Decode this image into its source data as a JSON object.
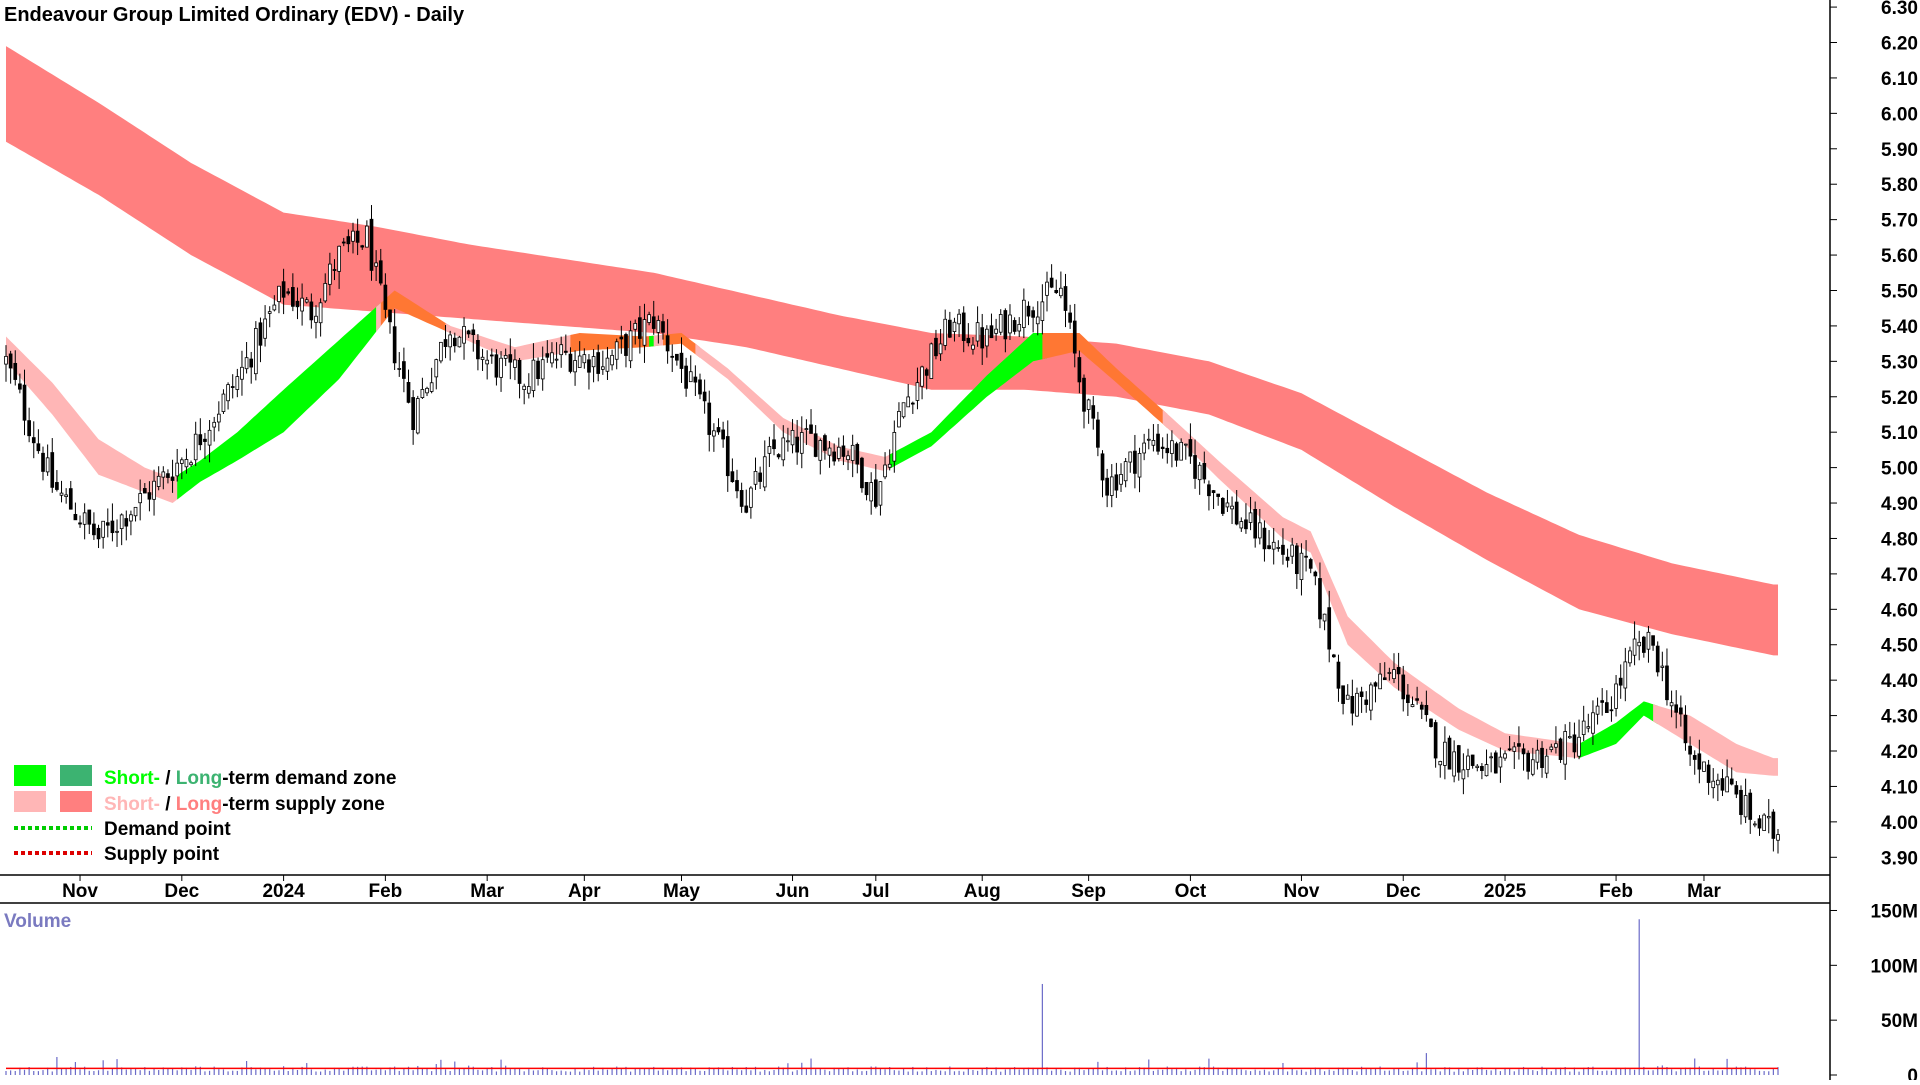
{
  "chart_data": {
    "type": "candlestick",
    "title": "Endeavour Group Limited Ordinary (EDV) - Daily",
    "y_axis": {
      "range": [
        3.85,
        6.32
      ],
      "ticks": [
        "3.90",
        "4.00",
        "4.10",
        "4.20",
        "4.30",
        "4.40",
        "4.50",
        "4.60",
        "4.70",
        "4.80",
        "4.90",
        "5.00",
        "5.10",
        "5.20",
        "5.30",
        "5.40",
        "5.50",
        "5.60",
        "5.70",
        "5.80",
        "5.90",
        "6.00",
        "6.10",
        "6.20",
        "6.30"
      ]
    },
    "x_axis": {
      "months": [
        "Nov",
        "Dec",
        "2024",
        "Feb",
        "Mar",
        "Apr",
        "May",
        "Jun",
        "Jul",
        "Aug",
        "Sep",
        "Oct",
        "Nov",
        "Dec",
        "2025",
        "Feb",
        "Mar"
      ],
      "month_day_index": [
        16,
        38,
        60,
        82,
        104,
        125,
        146,
        170,
        188,
        211,
        234,
        256,
        280,
        302,
        324,
        348,
        367
      ]
    },
    "price_path": {
      "day_index": [
        0,
        10,
        20,
        30,
        40,
        50,
        60,
        66,
        72,
        78,
        82,
        88,
        96,
        104,
        112,
        120,
        130,
        140,
        146,
        152,
        160,
        166,
        174,
        182,
        188,
        194,
        204,
        212,
        220,
        228,
        232,
        238,
        248,
        256,
        266,
        276,
        282,
        290,
        300,
        310,
        320,
        330,
        338,
        346,
        352,
        356,
        364,
        372,
        378,
        382
      ],
      "close": [
        5.3,
        4.95,
        4.8,
        4.92,
        5.05,
        5.25,
        5.5,
        5.44,
        5.6,
        5.65,
        5.42,
        5.15,
        5.4,
        5.3,
        5.25,
        5.32,
        5.3,
        5.42,
        5.28,
        5.12,
        4.9,
        5.05,
        5.08,
        5.05,
        4.92,
        5.18,
        5.4,
        5.36,
        5.45,
        5.5,
        5.25,
        4.95,
        5.08,
        5.02,
        4.86,
        4.76,
        4.7,
        4.32,
        4.42,
        4.2,
        4.15,
        4.18,
        4.22,
        4.32,
        4.48,
        4.5,
        4.18,
        4.1,
        4.0,
        3.97
      ]
    },
    "short_term_zone": {
      "day_index": [
        0,
        10,
        20,
        30,
        36,
        42,
        50,
        60,
        72,
        84,
        96,
        110,
        124,
        138,
        146,
        156,
        168,
        180,
        190,
        200,
        212,
        222,
        232,
        240,
        252,
        262,
        276,
        282,
        290,
        300,
        314,
        324,
        340,
        348,
        354,
        364,
        374,
        382
      ],
      "upper": [
        5.37,
        5.24,
        5.08,
        5.0,
        4.97,
        5.02,
        5.1,
        5.22,
        5.36,
        5.5,
        5.4,
        5.34,
        5.38,
        5.37,
        5.38,
        5.28,
        5.14,
        5.06,
        5.03,
        5.1,
        5.26,
        5.38,
        5.38,
        5.28,
        5.14,
        5.02,
        4.86,
        4.82,
        4.58,
        4.45,
        4.32,
        4.25,
        4.22,
        4.28,
        4.34,
        4.3,
        4.22,
        4.18
      ],
      "lower": [
        5.3,
        5.15,
        4.98,
        4.93,
        4.9,
        4.96,
        5.02,
        5.1,
        5.25,
        5.45,
        5.38,
        5.3,
        5.33,
        5.34,
        5.35,
        5.25,
        5.1,
        5.02,
        4.99,
        5.06,
        5.2,
        5.3,
        5.33,
        5.24,
        5.1,
        4.97,
        4.8,
        4.76,
        4.5,
        4.38,
        4.26,
        4.2,
        4.18,
        4.22,
        4.3,
        4.22,
        4.14,
        4.13
      ]
    },
    "long_term_zone": {
      "day_index": [
        0,
        20,
        40,
        60,
        80,
        100,
        120,
        140,
        160,
        180,
        200,
        220,
        240,
        260,
        280,
        300,
        320,
        340,
        360,
        382
      ],
      "upper": [
        6.19,
        6.03,
        5.86,
        5.72,
        5.68,
        5.63,
        5.59,
        5.55,
        5.49,
        5.43,
        5.38,
        5.37,
        5.35,
        5.3,
        5.21,
        5.07,
        4.93,
        4.81,
        4.73,
        4.67
      ],
      "lower": [
        5.92,
        5.77,
        5.6,
        5.46,
        5.44,
        5.42,
        5.4,
        5.38,
        5.34,
        5.28,
        5.22,
        5.22,
        5.2,
        5.15,
        5.05,
        4.89,
        4.74,
        4.6,
        4.53,
        4.47
      ]
    },
    "volume": {
      "label": "Volume",
      "ticks": [
        "0",
        "50M",
        "100M",
        "150M"
      ],
      "range": [
        0,
        155
      ],
      "baseline": 6,
      "spikes": [
        {
          "day_index": 224,
          "value": 83
        },
        {
          "day_index": 353,
          "value": 142
        },
        {
          "day_index": 307,
          "value": 20
        },
        {
          "day_index": 236,
          "value": 12
        },
        {
          "day_index": 93,
          "value": 10
        },
        {
          "day_index": 174,
          "value": 15
        }
      ]
    },
    "colors": {
      "short_demand": "#00ff00",
      "long_demand": "#3cb371",
      "short_supply": "#ffb6b6",
      "long_supply": "#ff7f7f",
      "overlap": "#ff7733",
      "bull_candle": "#ffffff",
      "bear_candle": "#000000",
      "volume_bar": "#6b6bc8",
      "volume_avg": "#ff0000",
      "demand_point": "#00cc00",
      "supply_point": "#dd0000"
    },
    "legend": {
      "placement": "bottom-left",
      "row1": {
        "short": "Short-",
        "sep": " / ",
        "long": "Long",
        "rest": "-term demand zone"
      },
      "row2": {
        "short": "Short-",
        "sep": " / ",
        "long": "Long",
        "rest": "-term supply zone"
      },
      "row3": "Demand point",
      "row4": "Supply point"
    }
  }
}
